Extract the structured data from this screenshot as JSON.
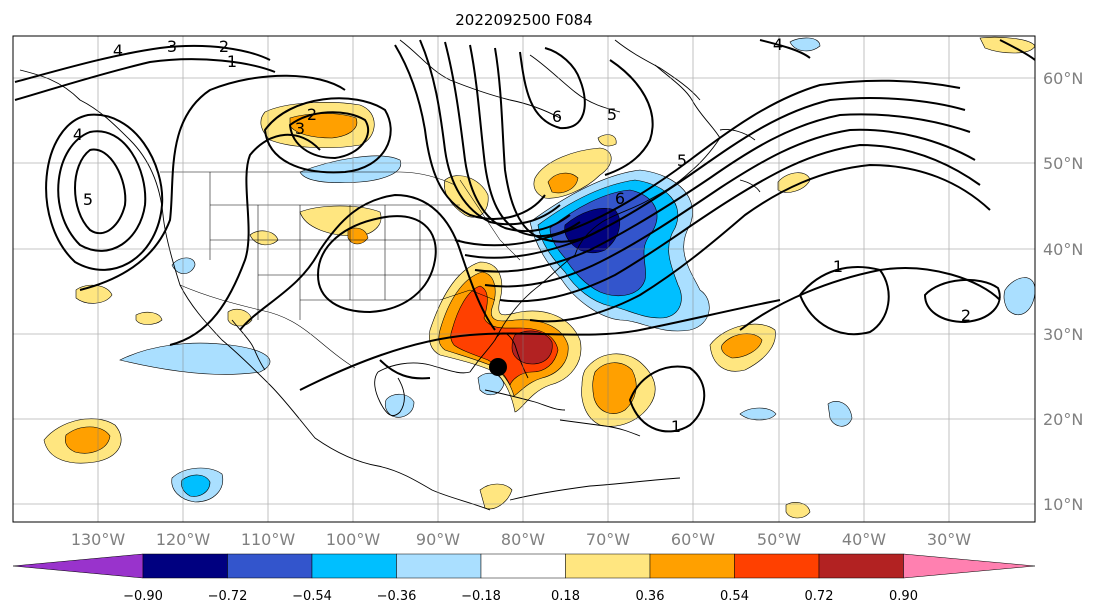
{
  "title": "2022092500 F084",
  "map": {
    "lon_range": [
      -140,
      -20
    ],
    "lat_range": [
      8,
      65
    ],
    "lon_ticks": [
      "130°W",
      "120°W",
      "110°W",
      "100°W",
      "90°W",
      "80°W",
      "70°W",
      "60°W",
      "50°W",
      "40°W",
      "30°W"
    ],
    "lat_ticks": [
      "60°N",
      "50°N",
      "40°N",
      "30°N",
      "20°N",
      "10°N"
    ],
    "grid": true,
    "storm_marker": {
      "lon": -84.4,
      "lat": 26.2
    }
  },
  "colorbar": {
    "ticks": [
      "−0.90",
      "−0.72",
      "−0.54",
      "−0.36",
      "−0.18",
      "0.18",
      "0.36",
      "0.54",
      "0.72",
      "0.90"
    ],
    "colors": [
      "#9933cc",
      "#000080",
      "#3355cc",
      "#00bfff",
      "#aadfff",
      "#ffffff",
      "#ffe680",
      "#ffa000",
      "#ff4000",
      "#b22222",
      "#ff80b0"
    ],
    "extend": "both"
  },
  "contour_labels": [
    "4",
    "3",
    "2",
    "1",
    "4",
    "5",
    "2",
    "3",
    "6",
    "5",
    "6",
    "5",
    "4",
    "1",
    "2",
    "1"
  ]
}
